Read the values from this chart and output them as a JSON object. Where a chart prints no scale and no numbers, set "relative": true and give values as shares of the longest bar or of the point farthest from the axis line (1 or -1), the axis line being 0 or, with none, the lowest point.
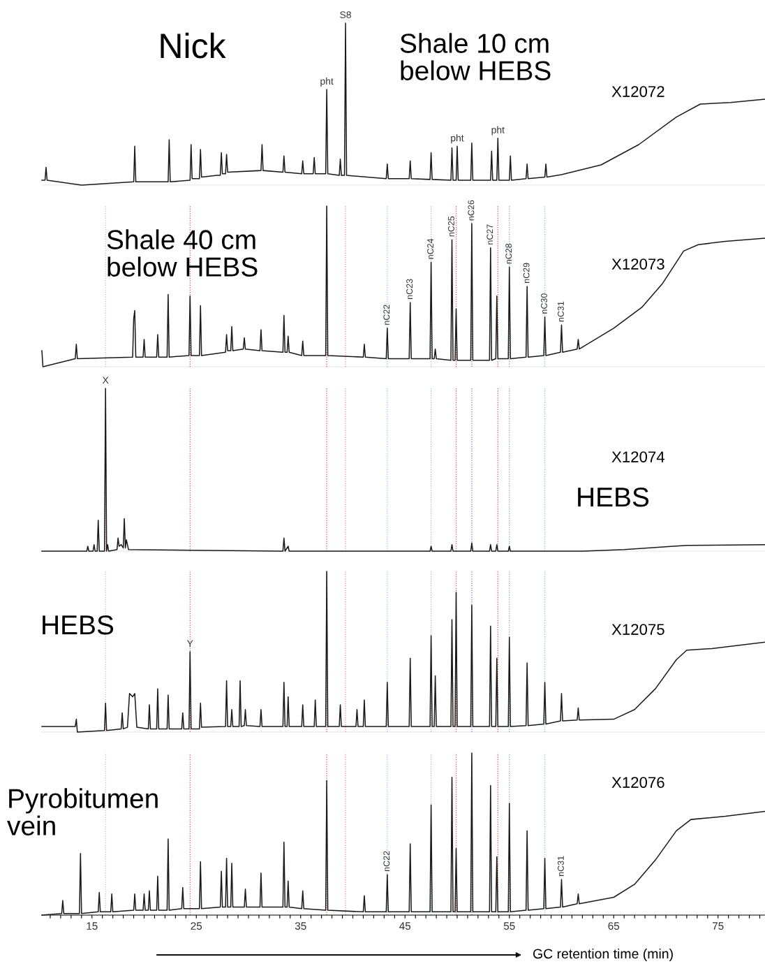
{
  "chart_data": [
    {
      "type": "line",
      "relative": true,
      "xlim": [
        10.2,
        79.5
      ],
      "tick_labels": false,
      "series": [
        {
          "color": "#1a1a1a",
          "x": [
            10.2,
            10.5,
            10.6,
            10.7,
            14,
            19.0,
            19.1,
            19.2,
            22.3,
            22.4,
            22.5,
            24.4,
            24.5,
            24.6,
            25.3,
            25.4,
            25.5,
            27,
            27.3,
            27.4,
            27.5,
            27.8,
            27.9,
            28.0,
            31.2,
            31.3,
            31.4,
            33.3,
            33.4,
            33.5,
            35.1,
            35.2,
            35.3,
            36.2,
            36.3,
            36.4,
            37.4,
            37.5,
            37.6,
            38.7,
            38.8,
            38.9,
            39.2,
            39.3,
            39.4,
            43.2,
            43.3,
            43.4,
            45.4,
            45.5,
            45.6,
            47.4,
            47.5,
            47.6,
            49.4,
            49.5,
            49.6,
            49.9,
            50.0,
            50.1,
            51.3,
            51.4,
            51.5,
            53.2,
            53.3,
            53.4,
            53.8,
            53.9,
            54.0,
            55.0,
            55.1,
            55.2,
            56.6,
            56.7,
            56.8,
            58.4,
            58.5,
            58.6,
            60.0,
            63.8,
            67.4,
            71.0,
            73.3,
            76.2,
            79.5
          ],
          "values": [
            0.03,
            0.03,
            0.11,
            0.03,
            0,
            0.02,
            0.24,
            0.02,
            0.02,
            0.28,
            0.02,
            0.03,
            0.25,
            0.04,
            0.04,
            0.22,
            0.05,
            0.06,
            0.06,
            0.2,
            0.07,
            0.07,
            0.19,
            0.08,
            0.09,
            0.25,
            0.09,
            0.08,
            0.18,
            0.08,
            0.07,
            0.15,
            0.07,
            0.07,
            0.17,
            0.07,
            0.07,
            0.59,
            0.07,
            0.06,
            0.16,
            0.06,
            0.06,
            1.0,
            0.06,
            0.04,
            0.13,
            0.04,
            0.04,
            0.15,
            0.04,
            0.035,
            0.2,
            0.035,
            0.03,
            0.23,
            0.03,
            0.03,
            0.24,
            0.03,
            0.03,
            0.26,
            0.03,
            0.03,
            0.21,
            0.03,
            0.03,
            0.29,
            0.03,
            0.03,
            0.18,
            0.03,
            0.04,
            0.13,
            0.04,
            0.05,
            0.13,
            0.05,
            0.065,
            0.125,
            0.25,
            0.42,
            0.5,
            0.51,
            0.53
          ]
        }
      ],
      "annotations": [
        "Nick",
        "Shale 10 cm\nbelow HEBS",
        "X12072",
        {
          "text": "pht",
          "x": 37.5,
          "y": 0.59
        },
        {
          "text": "S8",
          "x": 39.3,
          "y": 1.0
        },
        {
          "text": "pht",
          "x": 50.0,
          "y": 0.24
        },
        {
          "text": "pht",
          "x": 53.9,
          "y": 0.29
        }
      ]
    },
    {
      "type": "line",
      "relative": true,
      "xlim": [
        10.2,
        79.5
      ],
      "tick_labels": false,
      "series": [
        {
          "color": "#1a1a1a",
          "x": [
            10.2,
            10.3,
            13.4,
            13.5,
            13.6,
            18.9,
            19.0,
            19.1,
            19.2,
            19.9,
            20.0,
            20.1,
            21.2,
            21.3,
            21.4,
            22.2,
            22.3,
            22.4,
            24.3,
            24.4,
            24.5,
            25.3,
            25.4,
            25.5,
            27.8,
            27.9,
            28.0,
            28.3,
            28.4,
            28.5,
            29.5,
            29.6,
            29.7,
            31.1,
            31.2,
            31.3,
            33.3,
            33.4,
            33.5,
            33.7,
            33.8,
            33.9,
            35.1,
            35.2,
            35.3,
            37.4,
            37.5,
            37.6,
            41.0,
            41.1,
            41.2,
            43.2,
            43.3,
            43.4,
            45.4,
            45.5,
            45.6,
            47.4,
            47.5,
            47.6,
            47.8,
            47.9,
            48.0,
            49.4,
            49.5,
            49.6,
            49.8,
            49.9,
            50.0,
            51.3,
            51.4,
            51.5,
            53.1,
            53.2,
            53.3,
            53.7,
            53.8,
            53.9,
            54.9,
            55.0,
            55.1,
            56.6,
            56.7,
            56.8,
            58.3,
            58.4,
            58.5,
            59.9,
            60.0,
            60.1,
            61.5,
            61.6,
            61.7,
            65.0,
            67.7,
            69.7,
            71.7,
            73.1,
            75.7,
            79.5
          ],
          "values": [
            0.1,
            0,
            0.05,
            0.14,
            0.05,
            0.06,
            0.3,
            0.35,
            0.06,
            0.06,
            0.17,
            0.06,
            0.06,
            0.2,
            0.06,
            0.06,
            0.45,
            0.06,
            0.07,
            0.44,
            0.07,
            0.07,
            0.38,
            0.07,
            0.09,
            0.2,
            0.1,
            0.1,
            0.25,
            0.1,
            0.11,
            0.18,
            0.11,
            0.1,
            0.23,
            0.1,
            0.09,
            0.32,
            0.09,
            0.09,
            0.19,
            0.09,
            0.07,
            0.16,
            0.07,
            0.07,
            1.0,
            0.07,
            0.06,
            0.14,
            0.06,
            0.05,
            0.24,
            0.05,
            0.05,
            0.4,
            0.05,
            0.05,
            0.65,
            0.05,
            0.05,
            0.11,
            0.05,
            0.04,
            0.79,
            0.04,
            0.04,
            0.36,
            0.04,
            0.04,
            0.89,
            0.04,
            0.04,
            0.74,
            0.04,
            0.05,
            0.44,
            0.05,
            0.05,
            0.62,
            0.05,
            0.06,
            0.5,
            0.06,
            0.07,
            0.31,
            0.07,
            0.09,
            0.26,
            0.09,
            0.11,
            0.17,
            0.11,
            0.24,
            0.37,
            0.52,
            0.72,
            0.76,
            0.78,
            0.8
          ]
        }
      ],
      "annotations": [
        "Shale 40 cm\nbelow HEBS",
        "X12073",
        {
          "text": "nC22",
          "x": 43.3,
          "y": 0.24
        },
        {
          "text": "nC23",
          "x": 45.5,
          "y": 0.4
        },
        {
          "text": "nC24",
          "x": 47.5,
          "y": 0.65
        },
        {
          "text": "nC25",
          "x": 49.5,
          "y": 0.79
        },
        {
          "text": "nC26",
          "x": 51.4,
          "y": 0.89
        },
        {
          "text": "nC27",
          "x": 53.2,
          "y": 0.74
        },
        {
          "text": "nC28",
          "x": 55.0,
          "y": 0.62
        },
        {
          "text": "nC29",
          "x": 56.7,
          "y": 0.5
        },
        {
          "text": "nC30",
          "x": 58.4,
          "y": 0.31
        },
        {
          "text": "nC31",
          "x": 60.0,
          "y": 0.26
        }
      ],
      "ref_lines": [
        {
          "axis": "x",
          "value": 16.3,
          "color": "#f2aaa2",
          "line_style": "dotted"
        },
        {
          "axis": "x",
          "value": 24.4,
          "color": "#d9534f",
          "line_style": "dotted"
        },
        {
          "axis": "x",
          "value": 37.5,
          "color": "#d9534f",
          "line_style": "dotted"
        },
        {
          "axis": "x",
          "value": 39.3,
          "color": "#ec8a80",
          "line_style": "dotted"
        },
        {
          "axis": "x",
          "value": 43.3,
          "color": "#8fbde6",
          "line_style": "dotted"
        },
        {
          "axis": "x",
          "value": 47.5,
          "color": "#8fbde6",
          "line_style": "dotted"
        },
        {
          "axis": "x",
          "value": 49.9,
          "color": "#d9534f",
          "line_style": "dotted"
        },
        {
          "axis": "x",
          "value": 51.4,
          "color": "#4a8ccf",
          "line_style": "dotted"
        },
        {
          "axis": "x",
          "value": 53.9,
          "color": "#d9534f",
          "line_style": "dotted"
        },
        {
          "axis": "x",
          "value": 55.0,
          "color": "#6fa8dc",
          "line_style": "dotted"
        },
        {
          "axis": "x",
          "value": 58.4,
          "color": "#8fbde6",
          "line_style": "dotted"
        }
      ]
    },
    {
      "type": "line",
      "relative": true,
      "xlim": [
        10.2,
        79.5
      ],
      "tick_labels": false,
      "series": [
        {
          "color": "#1a1a1a",
          "x": [
            10.2,
            14.5,
            14.6,
            14.7,
            15.1,
            15.2,
            15.3,
            15.5,
            15.6,
            15.7,
            16.2,
            16.3,
            16.4,
            16.5,
            16.6,
            17.4,
            17.5,
            17.6,
            17.8,
            18.0,
            18.1,
            18.2,
            18.3,
            18.5,
            33.3,
            33.4,
            33.5,
            33.8,
            33.9,
            47.4,
            47.5,
            47.6,
            49.4,
            49.5,
            49.6,
            51.3,
            51.4,
            51.5,
            53.1,
            53.2,
            53.3,
            53.7,
            53.8,
            53.9,
            54.9,
            55.0,
            55.1,
            62,
            66,
            70.7,
            72,
            79.5
          ],
          "values": [
            0,
            0,
            0.03,
            0,
            0,
            0.04,
            0,
            0,
            0.19,
            0,
            0,
            1.0,
            0,
            0.04,
            0,
            0.01,
            0.08,
            0.03,
            0.04,
            0.02,
            0.2,
            0.02,
            0.07,
            0.01,
            0,
            0.08,
            0,
            0.03,
            0,
            0,
            0.03,
            0,
            0,
            0.04,
            0,
            0,
            0.05,
            0,
            0,
            0.04,
            0,
            0,
            0.04,
            0,
            0,
            0.03,
            0,
            0,
            0.01,
            0.03,
            0.035,
            0.04
          ]
        }
      ],
      "annotations": [
        "X12074",
        "HEBS",
        {
          "text": "X",
          "x": 16.3,
          "y": 1.0
        }
      ],
      "ref_lines": [
        {
          "axis": "x",
          "value": 16.3,
          "color": "#f2aaa2",
          "line_style": "dotted"
        },
        {
          "axis": "x",
          "value": 24.4,
          "color": "#d9534f",
          "line_style": "dotted"
        },
        {
          "axis": "x",
          "value": 37.5,
          "color": "#d9534f",
          "line_style": "dotted"
        },
        {
          "axis": "x",
          "value": 39.3,
          "color": "#ec8a80",
          "line_style": "dotted"
        },
        {
          "axis": "x",
          "value": 43.3,
          "color": "#8fbde6",
          "line_style": "dotted"
        },
        {
          "axis": "x",
          "value": 47.5,
          "color": "#8fbde6",
          "line_style": "dotted"
        },
        {
          "axis": "x",
          "value": 49.9,
          "color": "#d9534f",
          "line_style": "dotted"
        },
        {
          "axis": "x",
          "value": 51.4,
          "color": "#4a8ccf",
          "line_style": "dotted"
        },
        {
          "axis": "x",
          "value": 53.9,
          "color": "#d9534f",
          "line_style": "dotted"
        },
        {
          "axis": "x",
          "value": 55.0,
          "color": "#6fa8dc",
          "line_style": "dotted"
        },
        {
          "axis": "x",
          "value": 58.4,
          "color": "#8fbde6",
          "line_style": "dotted"
        }
      ]
    },
    {
      "type": "line",
      "relative": true,
      "xlim": [
        10.2,
        79.5
      ],
      "tick_labels": false,
      "series": [
        {
          "color": "#1a1a1a",
          "x": [
            10.2,
            13.4,
            13.5,
            13.6,
            16.2,
            16.3,
            16.4,
            17.8,
            17.9,
            18.0,
            18.4,
            18.6,
            18.9,
            19.1,
            19.3,
            20.4,
            20.5,
            20.6,
            21.2,
            21.3,
            21.4,
            22.2,
            22.3,
            22.4,
            23.6,
            23.7,
            23.8,
            24.3,
            24.4,
            24.5,
            25.3,
            25.4,
            25.5,
            27.8,
            27.9,
            28.0,
            28.3,
            28.4,
            28.5,
            29.1,
            29.2,
            29.3,
            29.6,
            29.7,
            29.8,
            31.1,
            31.2,
            31.3,
            33.3,
            33.4,
            33.5,
            33.7,
            33.8,
            33.9,
            35.1,
            35.2,
            35.3,
            36.3,
            36.4,
            36.5,
            37.4,
            37.5,
            37.6,
            38.7,
            38.8,
            38.9,
            40.3,
            40.4,
            40.5,
            41.0,
            41.1,
            41.2,
            43.2,
            43.3,
            43.4,
            45.4,
            45.5,
            45.6,
            47.4,
            47.5,
            47.6,
            47.8,
            47.9,
            48.0,
            49.4,
            49.5,
            49.6,
            49.8,
            49.9,
            50.0,
            51.3,
            51.4,
            51.5,
            53.1,
            53.2,
            53.3,
            53.7,
            53.8,
            53.9,
            54.9,
            55.0,
            55.1,
            56.6,
            56.7,
            56.8,
            58.3,
            58.4,
            58.5,
            59.9,
            60.0,
            60.1,
            61.5,
            61.6,
            61.7,
            65.0,
            67.0,
            69.0,
            71.0,
            72.0,
            74.4,
            79.5
          ],
          "values": [
            0.035,
            0.035,
            0.08,
            0,
            0.01,
            0.18,
            0.01,
            0.02,
            0.12,
            0.02,
            0.03,
            0.24,
            0.22,
            0.24,
            0.03,
            0.02,
            0.17,
            0.02,
            0.02,
            0.27,
            0.02,
            0.02,
            0.23,
            0.02,
            0.02,
            0.12,
            0.02,
            0.02,
            0.5,
            0.02,
            0.02,
            0.18,
            0.03,
            0.035,
            0.32,
            0.035,
            0.035,
            0.14,
            0.035,
            0.035,
            0.32,
            0.035,
            0.04,
            0.14,
            0.04,
            0.035,
            0.14,
            0.035,
            0.035,
            0.31,
            0.035,
            0.035,
            0.22,
            0.035,
            0.035,
            0.17,
            0.035,
            0.035,
            0.2,
            0.035,
            0.035,
            1.0,
            0.035,
            0.035,
            0.17,
            0.035,
            0.035,
            0.14,
            0.035,
            0.035,
            0.2,
            0.035,
            0.035,
            0.31,
            0.035,
            0.035,
            0.46,
            0.035,
            0.035,
            0.6,
            0.035,
            0.035,
            0.35,
            0.035,
            0.035,
            0.7,
            0.035,
            0.035,
            0.87,
            0.035,
            0.035,
            0.79,
            0.035,
            0.035,
            0.66,
            0.035,
            0.035,
            0.46,
            0.035,
            0.035,
            0.59,
            0.035,
            0.04,
            0.43,
            0.04,
            0.05,
            0.31,
            0.05,
            0.07,
            0.24,
            0.07,
            0.075,
            0.15,
            0.075,
            0.08,
            0.14,
            0.27,
            0.45,
            0.51,
            0.52,
            0.56
          ]
        }
      ],
      "annotations": [
        "HEBS",
        "X12075",
        {
          "text": "Y",
          "x": 24.4,
          "y": 0.5
        }
      ],
      "ref_lines": [
        {
          "axis": "x",
          "value": 16.3,
          "color": "#f2aaa2",
          "line_style": "dotted"
        },
        {
          "axis": "x",
          "value": 24.4,
          "color": "#d9534f",
          "line_style": "dotted"
        },
        {
          "axis": "x",
          "value": 37.5,
          "color": "#d9534f",
          "line_style": "dotted"
        },
        {
          "axis": "x",
          "value": 39.3,
          "color": "#ec8a80",
          "line_style": "dotted"
        },
        {
          "axis": "x",
          "value": 43.3,
          "color": "#8fbde6",
          "line_style": "dotted"
        },
        {
          "axis": "x",
          "value": 47.5,
          "color": "#8fbde6",
          "line_style": "dotted"
        },
        {
          "axis": "x",
          "value": 49.9,
          "color": "#d9534f",
          "line_style": "dotted"
        },
        {
          "axis": "x",
          "value": 51.4,
          "color": "#4a8ccf",
          "line_style": "dotted"
        },
        {
          "axis": "x",
          "value": 53.9,
          "color": "#d9534f",
          "line_style": "dotted"
        },
        {
          "axis": "x",
          "value": 55.0,
          "color": "#6fa8dc",
          "line_style": "dotted"
        },
        {
          "axis": "x",
          "value": 58.4,
          "color": "#8fbde6",
          "line_style": "dotted"
        }
      ]
    },
    {
      "type": "line",
      "relative": true,
      "xlim": [
        10.2,
        79.5
      ],
      "tick_labels": "x",
      "xlabel": "GC retention time (min)",
      "xticks": [
        {
          "value": 11,
          "label": null
        },
        {
          "value": 12,
          "label": null
        },
        {
          "value": 13,
          "label": null
        },
        {
          "value": 14,
          "label": null
        },
        15,
        {
          "value": 16,
          "label": null
        },
        {
          "value": 17,
          "label": null
        },
        {
          "value": 18,
          "label": null
        },
        {
          "value": 19,
          "label": null
        },
        {
          "value": 20,
          "label": null
        },
        {
          "value": 21,
          "label": null
        },
        {
          "value": 22,
          "label": null
        },
        {
          "value": 23,
          "label": null
        },
        {
          "value": 24,
          "label": null
        },
        25,
        {
          "value": 26,
          "label": null
        },
        {
          "value": 27,
          "label": null
        },
        {
          "value": 28,
          "label": null
        },
        {
          "value": 29,
          "label": null
        },
        {
          "value": 30,
          "label": null
        },
        {
          "value": 31,
          "label": null
        },
        {
          "value": 32,
          "label": null
        },
        {
          "value": 33,
          "label": null
        },
        {
          "value": 34,
          "label": null
        },
        35,
        {
          "value": 36,
          "label": null
        },
        {
          "value": 37,
          "label": null
        },
        {
          "value": 38,
          "label": null
        },
        {
          "value": 39,
          "label": null
        },
        {
          "value": 40,
          "label": null
        },
        {
          "value": 41,
          "label": null
        },
        {
          "value": 42,
          "label": null
        },
        {
          "value": 43,
          "label": null
        },
        {
          "value": 44,
          "label": null
        },
        45,
        {
          "value": 46,
          "label": null
        },
        {
          "value": 47,
          "label": null
        },
        {
          "value": 48,
          "label": null
        },
        {
          "value": 49,
          "label": null
        },
        {
          "value": 50,
          "label": null
        },
        {
          "value": 51,
          "label": null
        },
        {
          "value": 52,
          "label": null
        },
        {
          "value": 53,
          "label": null
        },
        {
          "value": 54,
          "label": null
        },
        55,
        {
          "value": 56,
          "label": null
        },
        {
          "value": 57,
          "label": null
        },
        {
          "value": 58,
          "label": null
        },
        {
          "value": 59,
          "label": null
        },
        {
          "value": 60,
          "label": null
        },
        {
          "value": 61,
          "label": null
        },
        {
          "value": 62,
          "label": null
        },
        {
          "value": 63,
          "label": null
        },
        {
          "value": 64,
          "label": null
        },
        65,
        {
          "value": 66,
          "label": null
        },
        {
          "value": 67,
          "label": null
        },
        {
          "value": 68,
          "label": null
        },
        {
          "value": 69,
          "label": null
        },
        {
          "value": 70,
          "label": null
        },
        {
          "value": 71,
          "label": null
        },
        {
          "value": 72,
          "label": null
        },
        {
          "value": 73,
          "label": null
        },
        {
          "value": 74,
          "label": null
        },
        75,
        {
          "value": 76,
          "label": null
        },
        {
          "value": 77,
          "label": null
        },
        {
          "value": 78,
          "label": null
        },
        {
          "value": 79,
          "label": null
        }
      ],
      "series": [
        {
          "color": "#1a1a1a",
          "x": [
            10.2,
            12.1,
            12.2,
            12.3,
            13.8,
            13.9,
            14.0,
            15.6,
            15.7,
            15.8,
            16.8,
            16.9,
            17.0,
            19.0,
            19.1,
            19.2,
            19.9,
            20.0,
            20.1,
            20.4,
            20.5,
            20.6,
            21.2,
            21.3,
            21.4,
            22.2,
            22.3,
            22.4,
            23.6,
            23.7,
            23.8,
            25.3,
            25.4,
            25.5,
            27.3,
            27.4,
            27.5,
            27.8,
            27.9,
            28.0,
            28.3,
            28.4,
            28.5,
            29.6,
            29.7,
            29.8,
            31.1,
            31.2,
            31.3,
            33.3,
            33.4,
            33.5,
            33.7,
            33.8,
            33.9,
            35.1,
            35.2,
            35.3,
            37.4,
            37.5,
            37.6,
            41.0,
            41.1,
            41.2,
            43.2,
            43.3,
            43.4,
            45.4,
            45.5,
            45.6,
            47.4,
            47.5,
            47.6,
            49.4,
            49.5,
            49.6,
            49.8,
            49.9,
            50.0,
            51.3,
            51.4,
            51.5,
            53.1,
            53.2,
            53.3,
            53.7,
            53.8,
            53.9,
            54.9,
            55.0,
            55.1,
            56.6,
            56.7,
            56.8,
            58.3,
            58.4,
            58.5,
            59.9,
            60.0,
            60.1,
            61.5,
            61.6,
            61.7,
            65.0,
            67.0,
            69.0,
            71.0,
            72.4,
            75.7,
            79.5
          ],
          "values": [
            0,
            0.01,
            0.09,
            0.01,
            0.01,
            0.38,
            0.01,
            0.02,
            0.14,
            0.02,
            0.02,
            0.13,
            0.02,
            0.03,
            0.13,
            0.03,
            0.03,
            0.13,
            0.03,
            0.03,
            0.15,
            0.03,
            0.03,
            0.24,
            0.03,
            0.03,
            0.47,
            0.03,
            0.04,
            0.17,
            0.04,
            0.04,
            0.33,
            0.04,
            0.05,
            0.27,
            0.05,
            0.05,
            0.35,
            0.05,
            0.05,
            0.32,
            0.05,
            0.05,
            0.16,
            0.05,
            0.05,
            0.26,
            0.05,
            0.05,
            0.45,
            0.05,
            0.05,
            0.21,
            0.05,
            0.04,
            0.15,
            0.04,
            0.03,
            0.83,
            0.03,
            0.02,
            0.12,
            0.02,
            0.02,
            0.25,
            0.02,
            0.02,
            0.44,
            0.02,
            0.02,
            0.68,
            0.02,
            0.02,
            0.85,
            0.02,
            0.02,
            0.41,
            0.02,
            0.02,
            1.0,
            0.02,
            0.02,
            0.8,
            0.02,
            0.02,
            0.36,
            0.02,
            0.02,
            0.69,
            0.02,
            0.03,
            0.52,
            0.03,
            0.04,
            0.35,
            0.04,
            0.05,
            0.22,
            0.05,
            0.07,
            0.13,
            0.07,
            0.11,
            0.19,
            0.34,
            0.52,
            0.59,
            0.61,
            0.64
          ]
        }
      ],
      "annotations": [
        "Pyrobitumen\nvein",
        "X12076",
        {
          "text": "nC22",
          "x": 43.3,
          "y": 0.25
        },
        {
          "text": "nC31",
          "x": 60.0,
          "y": 0.22
        }
      ],
      "ref_lines": [
        {
          "axis": "x",
          "value": 16.3,
          "color": "#f2aaa2",
          "line_style": "dotted"
        },
        {
          "axis": "x",
          "value": 24.4,
          "color": "#d9534f",
          "line_style": "dotted"
        },
        {
          "axis": "x",
          "value": 37.5,
          "color": "#d9534f",
          "line_style": "dotted"
        },
        {
          "axis": "x",
          "value": 39.3,
          "color": "#ec8a80",
          "line_style": "dotted"
        },
        {
          "axis": "x",
          "value": 43.3,
          "color": "#8fbde6",
          "line_style": "dotted"
        },
        {
          "axis": "x",
          "value": 47.5,
          "color": "#8fbde6",
          "line_style": "dotted"
        },
        {
          "axis": "x",
          "value": 49.9,
          "color": "#d9534f",
          "line_style": "dotted"
        },
        {
          "axis": "x",
          "value": 51.4,
          "color": "#4a8ccf",
          "line_style": "dotted"
        },
        {
          "axis": "x",
          "value": 53.9,
          "color": "#d9534f",
          "line_style": "dotted"
        },
        {
          "axis": "x",
          "value": 55.0,
          "color": "#6fa8dc",
          "line_style": "dotted"
        },
        {
          "axis": "x",
          "value": 58.4,
          "color": "#8fbde6",
          "line_style": "dotted"
        }
      ]
    }
  ]
}
